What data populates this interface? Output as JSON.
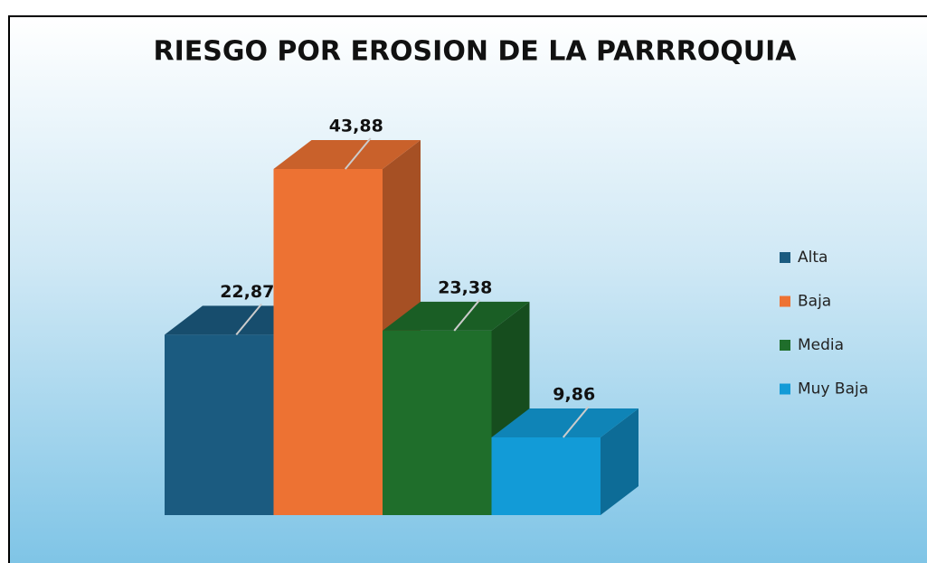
{
  "chart_data": {
    "type": "bar3d",
    "title": "RIESGO POR EROSION DE LA PARRROQUIA",
    "series": [
      {
        "name": "Alta",
        "color": "#1b5b80",
        "values": [
          22.87
        ],
        "value_labels": [
          "22,87"
        ]
      },
      {
        "name": "Baja",
        "color": "#ed7233",
        "values": [
          43.88
        ],
        "value_labels": [
          "43,88"
        ]
      },
      {
        "name": "Media",
        "color": "#1f6e2b",
        "values": [
          23.38
        ],
        "value_labels": [
          "23,38"
        ]
      },
      {
        "name": "Muy Baja",
        "color": "#129bd7",
        "values": [
          9.86
        ],
        "value_labels": [
          "9,86"
        ]
      }
    ],
    "legend": "right"
  }
}
